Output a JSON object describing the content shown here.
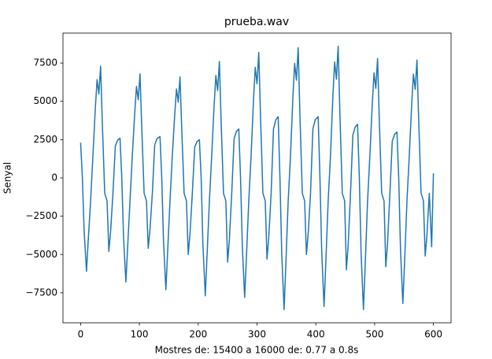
{
  "chart_data": {
    "type": "line",
    "title": "prueba.wav",
    "x_label": "Mostres de: 15400 a 16000 de: 0.77 a 0.8s",
    "y_label": "Senyal",
    "color": "#1f77b4",
    "xlim": [
      -30,
      630
    ],
    "ylim": [
      -9460,
      9460
    ],
    "xticks": [
      0,
      100,
      200,
      300,
      400,
      500,
      600
    ],
    "yticks": [
      {
        "value": -7500,
        "label": "−7500"
      },
      {
        "value": -5000,
        "label": "−5000"
      },
      {
        "value": -2500,
        "label": "−2500"
      },
      0,
      2500,
      5000,
      7500
    ],
    "x": [
      0,
      3,
      6,
      10,
      13,
      17,
      21,
      25,
      28,
      31,
      34,
      37,
      41,
      45,
      48,
      51,
      55,
      59,
      63,
      67,
      70,
      73,
      77,
      80,
      84,
      88,
      92,
      95,
      98,
      101,
      104,
      108,
      112,
      115,
      118,
      122,
      126,
      130,
      135,
      138,
      141,
      145,
      148,
      152,
      156,
      160,
      163,
      166,
      169,
      172,
      176,
      180,
      183,
      186,
      190,
      194,
      198,
      202,
      205,
      208,
      212,
      215,
      219,
      223,
      227,
      230,
      233,
      236,
      239,
      243,
      247,
      250,
      253,
      257,
      261,
      265,
      269,
      272,
      275,
      279,
      282,
      286,
      290,
      294,
      297,
      300,
      303,
      306,
      310,
      314,
      317,
      320,
      324,
      328,
      332,
      336,
      339,
      342,
      346,
      349,
      353,
      357,
      361,
      364,
      367,
      370,
      373,
      377,
      381,
      384,
      387,
      391,
      395,
      399,
      404,
      407,
      410,
      414,
      417,
      421,
      425,
      429,
      432,
      435,
      438,
      441,
      445,
      449,
      452,
      455,
      459,
      463,
      467,
      471,
      474,
      477,
      481,
      484,
      488,
      492,
      496,
      499,
      502,
      505,
      508,
      512,
      516,
      519,
      522,
      526,
      530,
      534,
      538,
      541,
      544,
      548,
      551,
      555,
      559,
      563,
      566,
      569,
      572,
      575,
      579,
      583,
      586,
      589,
      593,
      597,
      600
    ],
    "values": [
      2300,
      0,
      -3480,
      -6100,
      -4030,
      -1500,
      1500,
      4530,
      6420,
      5480,
      7300,
      3500,
      -1000,
      -1500,
      -4800,
      -3500,
      -1000,
      2080,
      2470,
      2600,
      0,
      -3880,
      -6800,
      -4490,
      -1500,
      1500,
      4220,
      5980,
      5100,
      6800,
      3260,
      -1000,
      -1500,
      -4600,
      -3360,
      -1000,
      2160,
      2570,
      2700,
      0,
      -4160,
      -7300,
      -4820,
      -1500,
      1500,
      4090,
      5810,
      4950,
      6600,
      3170,
      -1000,
      -1500,
      -5000,
      -3650,
      -1000,
      2000,
      2380,
      2500,
      0,
      -4390,
      -7700,
      -5080,
      -1500,
      1500,
      4710,
      6690,
      5700,
      7600,
      3650,
      -1000,
      -1500,
      -5500,
      -4020,
      -1000,
      2560,
      3040,
      3200,
      0,
      -4450,
      -7800,
      -5150,
      -1500,
      1500,
      5080,
      7220,
      6150,
      8200,
      3940,
      -1000,
      -1500,
      -5300,
      -3870,
      -1000,
      3200,
      3800,
      4000,
      0,
      -4900,
      -8600,
      -5680,
      -1500,
      1500,
      5270,
      7480,
      6380,
      8500,
      4080,
      -1000,
      -1500,
      -5000,
      -3650,
      -1000,
      3200,
      3800,
      4000,
      0,
      -4790,
      -8400,
      -5540,
      -1500,
      1500,
      5330,
      7570,
      6450,
      8600,
      4130,
      -1000,
      -1500,
      -6000,
      -4380,
      -1000,
      2800,
      3330,
      3500,
      0,
      -4900,
      -8600,
      -5680,
      -1500,
      1500,
      4840,
      6860,
      5850,
      7800,
      3740,
      -1000,
      -1500,
      -5800,
      -4230,
      -1000,
      2400,
      2850,
      3000,
      0,
      -4670,
      -8200,
      -5410,
      -1500,
      1500,
      4770,
      6780,
      5780,
      7700,
      3700,
      -1000,
      -1500,
      -5100,
      -3720,
      -1000,
      -4500,
      300
    ]
  }
}
